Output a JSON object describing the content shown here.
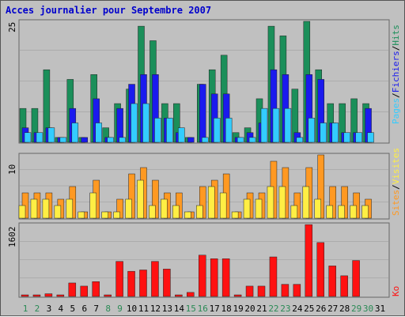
{
  "title": "Acces journalier pour Septembre 2007",
  "colors": {
    "background": "#c0c0c0",
    "title": "#0000cc",
    "hits": "#1b8f5a",
    "fichiers": "#1a1aee",
    "pages": "#33ccff",
    "visites": "#ff9922",
    "sites": "#ffee44",
    "ko": "#ff1111",
    "gridline": "#999999",
    "weekend_label": "#2a8a55",
    "weekday_label": "#000000"
  },
  "chart_data": [
    {
      "type": "bar",
      "name": "hits-fichiers-pages",
      "scale_label": "25",
      "ylim": [
        0,
        25
      ],
      "grid": true,
      "categories": [
        "1",
        "2",
        "3",
        "4",
        "5",
        "6",
        "7",
        "8",
        "9",
        "10",
        "11",
        "12",
        "13",
        "14",
        "15",
        "16",
        "17",
        "18",
        "19",
        "20",
        "21",
        "22",
        "23",
        "24",
        "25",
        "26",
        "27",
        "28",
        "29",
        "30",
        "31"
      ],
      "series": [
        {
          "name": "Hits",
          "values": [
            7,
            7,
            15,
            1,
            13,
            1,
            14,
            3,
            8,
            11,
            24,
            21,
            8,
            8,
            1,
            12,
            15,
            18,
            2,
            3,
            9,
            24,
            22,
            11,
            25,
            15,
            8,
            8,
            9,
            8,
            0
          ]
        },
        {
          "name": "Fichiers",
          "values": [
            3,
            2,
            3,
            1,
            7,
            1,
            9,
            1,
            7,
            12,
            14,
            14,
            5,
            2,
            1,
            12,
            10,
            10,
            1,
            2,
            4,
            15,
            14,
            2,
            14,
            13,
            4,
            2,
            2,
            7,
            0
          ]
        },
        {
          "name": "Pages",
          "values": [
            2,
            2,
            3,
            1,
            4,
            0,
            4,
            1,
            1,
            8,
            8,
            5,
            5,
            3,
            0,
            1,
            5,
            5,
            1,
            1,
            7,
            7,
            7,
            1,
            5,
            4,
            4,
            2,
            2,
            2,
            0
          ]
        }
      ]
    },
    {
      "type": "bar",
      "name": "visites-sites",
      "scale_label": "10",
      "ylim": [
        0,
        10
      ],
      "grid": true,
      "categories": [
        "1",
        "2",
        "3",
        "4",
        "5",
        "6",
        "7",
        "8",
        "9",
        "10",
        "11",
        "12",
        "13",
        "14",
        "15",
        "16",
        "17",
        "18",
        "19",
        "20",
        "21",
        "22",
        "23",
        "24",
        "25",
        "26",
        "27",
        "28",
        "29",
        "30",
        "31"
      ],
      "series": [
        {
          "name": "Visites",
          "values": [
            4,
            4,
            4,
            3,
            5,
            1,
            6,
            1,
            3,
            7,
            8,
            6,
            4,
            4,
            1,
            5,
            6,
            7,
            1,
            4,
            4,
            9,
            8,
            4,
            8,
            10,
            5,
            5,
            4,
            3,
            0
          ]
        },
        {
          "name": "Sites",
          "values": [
            2,
            3,
            3,
            2,
            3,
            1,
            4,
            1,
            1,
            3,
            6,
            2,
            3,
            2,
            1,
            2,
            5,
            4,
            1,
            3,
            3,
            5,
            5,
            2,
            5,
            3,
            2,
            2,
            2,
            2,
            0
          ]
        }
      ]
    },
    {
      "type": "bar",
      "name": "ko",
      "scale_label": "1602",
      "ylim": [
        0,
        1602
      ],
      "grid": true,
      "categories": [
        "1",
        "2",
        "3",
        "4",
        "5",
        "6",
        "7",
        "8",
        "9",
        "10",
        "11",
        "12",
        "13",
        "14",
        "15",
        "16",
        "17",
        "18",
        "19",
        "20",
        "21",
        "22",
        "23",
        "24",
        "25",
        "26",
        "27",
        "28",
        "29",
        "30",
        "31"
      ],
      "series": [
        {
          "name": "Ko",
          "values": [
            30,
            30,
            60,
            30,
            300,
            230,
            330,
            10,
            780,
            560,
            590,
            780,
            610,
            10,
            90,
            920,
            840,
            840,
            30,
            230,
            230,
            880,
            270,
            270,
            1600,
            1200,
            680,
            460,
            800,
            0,
            0
          ]
        }
      ]
    }
  ],
  "axis_labels": {
    "top_right": [
      "Pages",
      "Fichiers",
      "Hits"
    ],
    "middle_right": [
      "Sites",
      "Visites"
    ],
    "bottom_right": [
      "Ko"
    ]
  },
  "x_labels": [
    {
      "text": "1",
      "weekend": true
    },
    {
      "text": "2",
      "weekend": true
    },
    {
      "text": "3",
      "weekend": false
    },
    {
      "text": "4",
      "weekend": false
    },
    {
      "text": "5",
      "weekend": false
    },
    {
      "text": "6",
      "weekend": false
    },
    {
      "text": "7",
      "weekend": false
    },
    {
      "text": "8",
      "weekend": true
    },
    {
      "text": "9",
      "weekend": true
    },
    {
      "text": "10",
      "weekend": false
    },
    {
      "text": "11",
      "weekend": false
    },
    {
      "text": "12",
      "weekend": false
    },
    {
      "text": "13",
      "weekend": false
    },
    {
      "text": "14",
      "weekend": false
    },
    {
      "text": "15",
      "weekend": true
    },
    {
      "text": "16",
      "weekend": true
    },
    {
      "text": "17",
      "weekend": false
    },
    {
      "text": "18",
      "weekend": false
    },
    {
      "text": "19",
      "weekend": false
    },
    {
      "text": "20",
      "weekend": false
    },
    {
      "text": "21",
      "weekend": false
    },
    {
      "text": "22",
      "weekend": true
    },
    {
      "text": "23",
      "weekend": true
    },
    {
      "text": "24",
      "weekend": false
    },
    {
      "text": "25",
      "weekend": false
    },
    {
      "text": "26",
      "weekend": false
    },
    {
      "text": "27",
      "weekend": false
    },
    {
      "text": "28",
      "weekend": false
    },
    {
      "text": "29",
      "weekend": true
    },
    {
      "text": "30",
      "weekend": true
    },
    {
      "text": "31",
      "weekend": false
    }
  ]
}
